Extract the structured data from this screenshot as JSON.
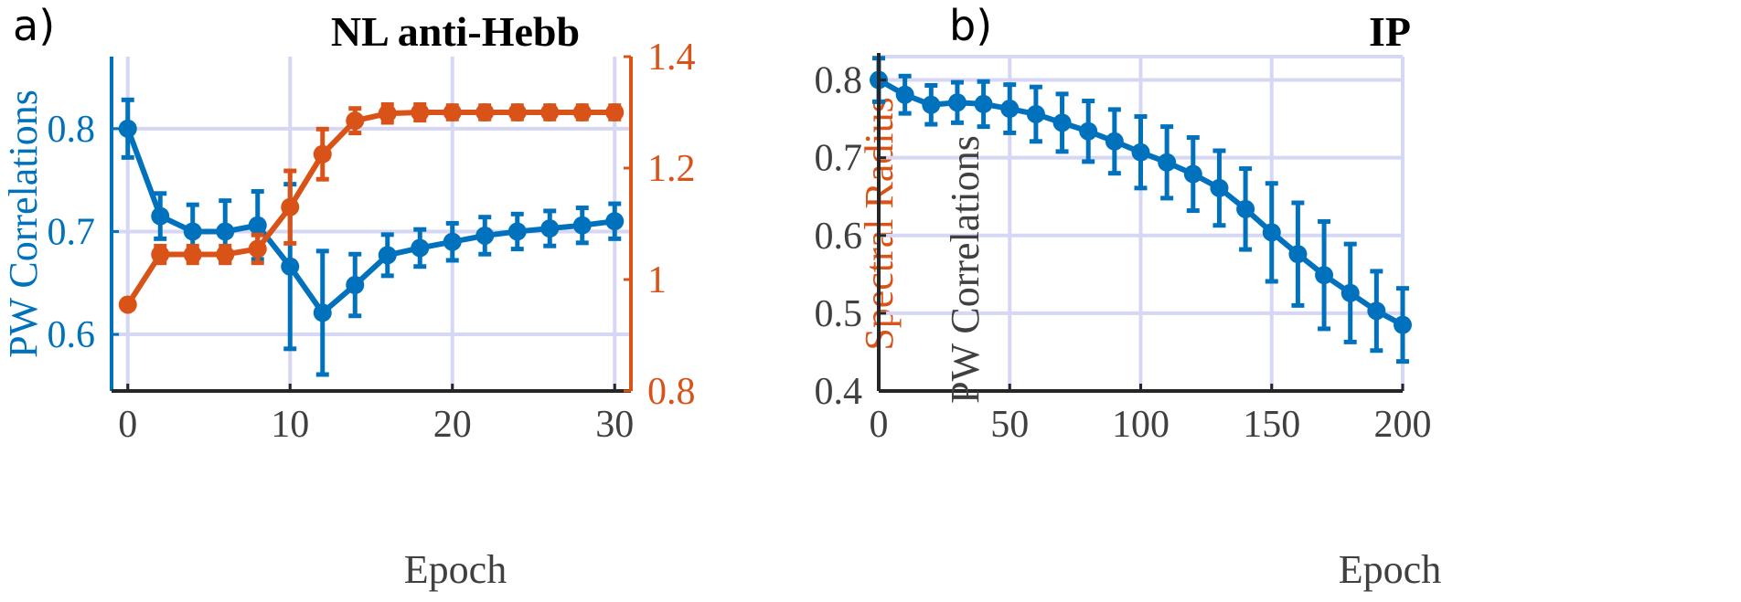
{
  "colors": {
    "blue": "#0072BD",
    "orange": "#D95319",
    "axis": "#262626",
    "tick_text": "#404040",
    "grid": "#d6d6f5"
  },
  "panels": {
    "a": {
      "letter": "a)",
      "title": "NL anti-Hebb"
    },
    "b": {
      "letter": "b)",
      "title": "IP"
    }
  },
  "chart_data": [
    {
      "type": "line",
      "title": "NL anti-Hebb",
      "xlabel": "Epoch",
      "ylabel": "PW Correlations",
      "ylabel_right": "Spectral Radius",
      "xlim": [
        -1,
        31
      ],
      "ylim": [
        0.545,
        0.87
      ],
      "ylim_right": [
        0.8,
        1.4
      ],
      "xticks": [
        0,
        10,
        20,
        30
      ],
      "xtick_labels": [
        "0",
        "10",
        "20",
        "30"
      ],
      "yticks": [
        0.6,
        0.7,
        0.8
      ],
      "ytick_labels": [
        "0.6",
        "0.7",
        "0.8"
      ],
      "yticks_right": [
        0.8,
        1.0,
        1.2,
        1.4
      ],
      "ytick_labels_right": [
        "0.8",
        "1",
        "1.2",
        "1.4"
      ],
      "grid": true,
      "series": [
        {
          "name": "PW Correlations",
          "axis": "left",
          "color": "blue",
          "x": [
            0,
            2,
            4,
            6,
            8,
            10,
            12,
            14,
            16,
            18,
            20,
            22,
            24,
            26,
            28,
            30
          ],
          "y": [
            0.8,
            0.715,
            0.7,
            0.7,
            0.706,
            0.666,
            0.621,
            0.648,
            0.677,
            0.684,
            0.69,
            0.696,
            0.7,
            0.703,
            0.706,
            0.71
          ],
          "err": [
            0.028,
            0.022,
            0.026,
            0.03,
            0.033,
            0.08,
            0.06,
            0.03,
            0.02,
            0.018,
            0.018,
            0.018,
            0.017,
            0.017,
            0.017,
            0.017
          ]
        },
        {
          "name": "Spectral Radius",
          "axis": "right",
          "color": "orange",
          "x": [
            0,
            2,
            4,
            6,
            8,
            10,
            12,
            14,
            16,
            18,
            20,
            22,
            24,
            26,
            28,
            30
          ],
          "y": [
            0.955,
            1.045,
            1.045,
            1.045,
            1.055,
            1.13,
            1.225,
            1.285,
            1.298,
            1.3,
            1.3,
            1.3,
            1.3,
            1.3,
            1.3,
            1.3
          ],
          "err": [
            0.0,
            0.015,
            0.015,
            0.015,
            0.025,
            0.065,
            0.045,
            0.022,
            0.016,
            0.014,
            0.012,
            0.012,
            0.012,
            0.012,
            0.012,
            0.012
          ]
        }
      ]
    },
    {
      "type": "line",
      "title": "IP",
      "xlabel": "Epoch",
      "ylabel": "PW Correlations",
      "xlim": [
        0,
        200
      ],
      "ylim": [
        0.4,
        0.83
      ],
      "xticks": [
        0,
        50,
        100,
        150,
        200
      ],
      "xtick_labels": [
        "0",
        "50",
        "100",
        "150",
        "200"
      ],
      "yticks": [
        0.4,
        0.5,
        0.6,
        0.7,
        0.8
      ],
      "ytick_labels": [
        "0.4",
        "0.5",
        "0.6",
        "0.7",
        "0.8"
      ],
      "grid": true,
      "series": [
        {
          "name": "PW Correlations",
          "axis": "left",
          "color": "blue",
          "x": [
            0,
            10,
            20,
            30,
            40,
            50,
            60,
            70,
            80,
            90,
            100,
            110,
            120,
            130,
            140,
            150,
            160,
            170,
            180,
            190,
            200
          ],
          "y": [
            0.8,
            0.781,
            0.768,
            0.771,
            0.769,
            0.763,
            0.756,
            0.745,
            0.734,
            0.721,
            0.707,
            0.694,
            0.679,
            0.661,
            0.634,
            0.604,
            0.576,
            0.549,
            0.526,
            0.503,
            0.485
          ],
          "err": [
            0.028,
            0.024,
            0.025,
            0.026,
            0.029,
            0.031,
            0.035,
            0.037,
            0.039,
            0.041,
            0.046,
            0.046,
            0.047,
            0.048,
            0.052,
            0.063,
            0.066,
            0.069,
            0.063,
            0.051,
            0.047
          ]
        }
      ]
    }
  ]
}
